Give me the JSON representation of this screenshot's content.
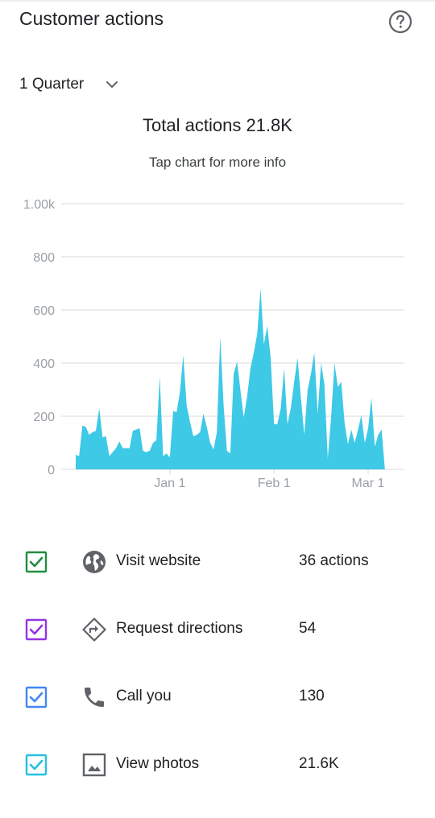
{
  "header": {
    "title": "Customer actions",
    "help_icon": "help-circle-icon"
  },
  "period": {
    "selected": "1 Quarter",
    "icon": "chevron-down-icon"
  },
  "summary": {
    "total": "Total actions 21.8K",
    "hint": "Tap chart for more info"
  },
  "colors": {
    "area": "#3ec9e6",
    "grid": "#e0e0e0",
    "axis_text": "#9aa0a6",
    "visit_website": "#1e8e3e",
    "request_directions": "#9334e6",
    "call_you": "#4285f4",
    "view_photos": "#24c1e0"
  },
  "chart_data": {
    "type": "area",
    "title": "",
    "xlabel": "",
    "ylabel": "",
    "ylim": [
      0,
      1000
    ],
    "yticks": [
      0,
      200,
      400,
      600,
      800,
      1000
    ],
    "ytick_labels": [
      "0",
      "200",
      "400",
      "600",
      "800",
      "1.00k"
    ],
    "xticks": [
      {
        "date": "2018-01-01",
        "label": "Jan 1"
      },
      {
        "date": "2018-02-01",
        "label": "Feb 1"
      },
      {
        "date": "2018-03-01",
        "label": "Mar 1"
      }
    ],
    "x_range": [
      "2017-12-04",
      "2018-03-07"
    ],
    "grid": true,
    "series": [
      {
        "points": [
          [
            "2017-12-04",
            55
          ],
          [
            "2017-12-05",
            50
          ],
          [
            "2017-12-06",
            165
          ],
          [
            "2017-12-07",
            160
          ],
          [
            "2017-12-08",
            130
          ],
          [
            "2017-12-09",
            140
          ],
          [
            "2017-12-10",
            145
          ],
          [
            "2017-12-11",
            230
          ],
          [
            "2017-12-12",
            120
          ],
          [
            "2017-12-13",
            125
          ],
          [
            "2017-12-14",
            50
          ],
          [
            "2017-12-15",
            65
          ],
          [
            "2017-12-16",
            80
          ],
          [
            "2017-12-17",
            105
          ],
          [
            "2017-12-18",
            80
          ],
          [
            "2017-12-19",
            80
          ],
          [
            "2017-12-20",
            80
          ],
          [
            "2017-12-21",
            145
          ],
          [
            "2017-12-22",
            150
          ],
          [
            "2017-12-23",
            155
          ],
          [
            "2017-12-24",
            70
          ],
          [
            "2017-12-25",
            65
          ],
          [
            "2017-12-26",
            70
          ],
          [
            "2017-12-27",
            100
          ],
          [
            "2017-12-28",
            110
          ],
          [
            "2017-12-29",
            350
          ],
          [
            "2017-12-30",
            50
          ],
          [
            "2017-12-31",
            60
          ],
          [
            "2018-01-01",
            45
          ],
          [
            "2018-01-02",
            220
          ],
          [
            "2018-01-03",
            215
          ],
          [
            "2018-01-04",
            290
          ],
          [
            "2018-01-05",
            430
          ],
          [
            "2018-01-06",
            240
          ],
          [
            "2018-01-07",
            180
          ],
          [
            "2018-01-08",
            125
          ],
          [
            "2018-01-09",
            130
          ],
          [
            "2018-01-10",
            140
          ],
          [
            "2018-01-11",
            210
          ],
          [
            "2018-01-12",
            160
          ],
          [
            "2018-01-13",
            100
          ],
          [
            "2018-01-14",
            75
          ],
          [
            "2018-01-15",
            140
          ],
          [
            "2018-01-16",
            500
          ],
          [
            "2018-01-17",
            240
          ],
          [
            "2018-01-18",
            70
          ],
          [
            "2018-01-19",
            60
          ],
          [
            "2018-01-20",
            360
          ],
          [
            "2018-01-21",
            405
          ],
          [
            "2018-01-22",
            300
          ],
          [
            "2018-01-23",
            195
          ],
          [
            "2018-01-24",
            275
          ],
          [
            "2018-01-25",
            380
          ],
          [
            "2018-01-26",
            440
          ],
          [
            "2018-01-27",
            510
          ],
          [
            "2018-01-28",
            680
          ],
          [
            "2018-01-29",
            470
          ],
          [
            "2018-01-30",
            540
          ],
          [
            "2018-01-31",
            420
          ],
          [
            "2018-02-01",
            170
          ],
          [
            "2018-02-02",
            170
          ],
          [
            "2018-02-03",
            230
          ],
          [
            "2018-02-04",
            380
          ],
          [
            "2018-02-05",
            170
          ],
          [
            "2018-02-06",
            230
          ],
          [
            "2018-02-07",
            330
          ],
          [
            "2018-02-08",
            420
          ],
          [
            "2018-02-09",
            270
          ],
          [
            "2018-02-10",
            130
          ],
          [
            "2018-02-11",
            300
          ],
          [
            "2018-02-12",
            360
          ],
          [
            "2018-02-13",
            440
          ],
          [
            "2018-02-14",
            210
          ],
          [
            "2018-02-15",
            400
          ],
          [
            "2018-02-16",
            320
          ],
          [
            "2018-02-17",
            40
          ],
          [
            "2018-02-18",
            200
          ],
          [
            "2018-02-19",
            400
          ],
          [
            "2018-02-20",
            310
          ],
          [
            "2018-02-21",
            330
          ],
          [
            "2018-02-22",
            175
          ],
          [
            "2018-02-23",
            95
          ],
          [
            "2018-02-24",
            150
          ],
          [
            "2018-02-25",
            100
          ],
          [
            "2018-02-26",
            150
          ],
          [
            "2018-02-27",
            205
          ],
          [
            "2018-02-28",
            100
          ],
          [
            "2018-03-01",
            155
          ],
          [
            "2018-03-02",
            270
          ],
          [
            "2018-03-03",
            85
          ],
          [
            "2018-03-04",
            130
          ],
          [
            "2018-03-05",
            150
          ],
          [
            "2018-03-06",
            0
          ]
        ]
      }
    ]
  },
  "legend": [
    {
      "label": "Visit website",
      "value": "36 actions",
      "icon": "globe-icon",
      "checked": true
    },
    {
      "label": "Request directions",
      "value": "54",
      "icon": "directions-icon",
      "checked": true
    },
    {
      "label": "Call you",
      "value": "130",
      "icon": "phone-icon",
      "checked": true
    },
    {
      "label": "View photos",
      "value": "21.6K",
      "icon": "photo-icon",
      "checked": true
    }
  ]
}
